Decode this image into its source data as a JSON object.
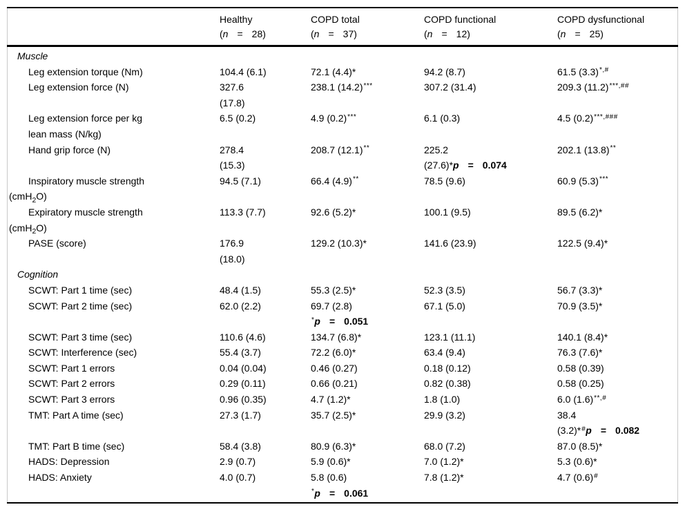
{
  "table": {
    "header": {
      "row_label_column": "",
      "columns": [
        {
          "title": "Healthy",
          "n_line": [
            "(",
            {
              "t": "n",
              "s": "i"
            },
            {
              "t": "=",
              "s": "g"
            },
            {
              "t": "28)",
              "s": "g"
            }
          ]
        },
        {
          "title": "COPD total",
          "n_line": [
            "(",
            {
              "t": "n",
              "s": "i"
            },
            {
              "t": "=",
              "s": "g"
            },
            {
              "t": "37)",
              "s": "g"
            }
          ]
        },
        {
          "title": "COPD functional",
          "n_line": [
            "(",
            {
              "t": "n",
              "s": "i"
            },
            {
              "t": "=",
              "s": "g"
            },
            {
              "t": "12)",
              "s": "g"
            }
          ]
        },
        {
          "title": "COPD dysfunctional",
          "n_line": [
            "(",
            {
              "t": "n",
              "s": "i"
            },
            {
              "t": "=",
              "s": "g"
            },
            {
              "t": "25)",
              "s": "g"
            }
          ]
        }
      ]
    },
    "rows": [
      {
        "kind": "section",
        "label": "Muscle"
      },
      {
        "kind": "data",
        "label": {
          "lines": [
            {
              "ind": "in",
              "seg": [
                "Leg extension torque (Nm)"
              ]
            }
          ]
        },
        "cells": [
          [
            [
              "104.4 (6.1)"
            ]
          ],
          [
            [
              "72.1 (4.4)*"
            ]
          ],
          [
            [
              "94.2 (8.7)"
            ]
          ],
          [
            [
              {
                "t": "61.5 (3.3)",
                "s": "n"
              },
              {
                "t": "*,#",
                "s": "sup"
              }
            ]
          ]
        ]
      },
      {
        "kind": "data",
        "label": {
          "lines": [
            {
              "ind": "in",
              "seg": [
                "Leg extension force (N)"
              ]
            }
          ]
        },
        "cells": [
          [
            [
              "327.6"
            ],
            [
              "(17.8)"
            ]
          ],
          [
            [
              {
                "t": "238.1 (14.2)",
                "s": "n"
              },
              {
                "t": "***",
                "s": "sup"
              }
            ]
          ],
          [
            [
              "307.2 (31.4)"
            ]
          ],
          [
            [
              {
                "t": "209.3 (11.2)",
                "s": "n"
              },
              {
                "t": "***,##",
                "s": "sup"
              }
            ]
          ]
        ]
      },
      {
        "kind": "data",
        "label": {
          "lines": [
            {
              "ind": "in",
              "seg": [
                "Leg extension force per kg"
              ]
            },
            {
              "ind": "in",
              "seg": [
                "lean mass (N/kg)"
              ]
            }
          ]
        },
        "cells": [
          [
            [
              "6.5 (0.2)"
            ]
          ],
          [
            [
              {
                "t": "4.9 (0.2)",
                "s": "n"
              },
              {
                "t": "***",
                "s": "sup"
              }
            ]
          ],
          [
            [
              "6.1 (0.3)"
            ]
          ],
          [
            [
              {
                "t": "4.5 (0.2)",
                "s": "n"
              },
              {
                "t": "***,###",
                "s": "sup"
              }
            ]
          ]
        ]
      },
      {
        "kind": "data",
        "label": {
          "lines": [
            {
              "ind": "in",
              "seg": [
                "Hand grip force (N)"
              ]
            }
          ]
        },
        "cells": [
          [
            [
              "278.4"
            ],
            [
              "(15.3)"
            ]
          ],
          [
            [
              {
                "t": "208.7 (12.1)",
                "s": "n"
              },
              {
                "t": "**",
                "s": "sup"
              }
            ]
          ],
          [
            [
              "225.2"
            ],
            [
              {
                "t": "(27.6)*",
                "s": "n"
              },
              {
                "t": "p",
                "s": "bi"
              },
              {
                "t": "=",
                "s": "bg"
              },
              {
                "t": "0.074",
                "s": "bg"
              }
            ]
          ],
          [
            [
              {
                "t": "202.1 (13.8)",
                "s": "n"
              },
              {
                "t": "**",
                "s": "sup"
              }
            ]
          ]
        ]
      },
      {
        "kind": "data",
        "label": {
          "lines": [
            {
              "ind": "in",
              "seg": [
                "Inspiratory muscle strength"
              ]
            },
            {
              "ind": "out",
              "seg": [
                "(cmH",
                {
                  "t": "2",
                  "s": "sub"
                },
                "O)"
              ]
            }
          ]
        },
        "cells": [
          [
            [
              "94.5 (7.1)"
            ]
          ],
          [
            [
              {
                "t": "66.4 (4.9)",
                "s": "n"
              },
              {
                "t": "**",
                "s": "sup"
              }
            ]
          ],
          [
            [
              "78.5 (9.6)"
            ]
          ],
          [
            [
              {
                "t": "60.9 (5.3)",
                "s": "n"
              },
              {
                "t": "***",
                "s": "sup"
              }
            ]
          ]
        ]
      },
      {
        "kind": "data",
        "label": {
          "lines": [
            {
              "ind": "in",
              "seg": [
                "Expiratory muscle strength"
              ]
            },
            {
              "ind": "out",
              "seg": [
                "(cmH",
                {
                  "t": "2",
                  "s": "sub"
                },
                "O)"
              ]
            }
          ]
        },
        "cells": [
          [
            [
              "113.3 (7.7)"
            ]
          ],
          [
            [
              "92.6 (5.2)*"
            ]
          ],
          [
            [
              "100.1 (9.5)"
            ]
          ],
          [
            [
              "89.5 (6.2)*"
            ]
          ]
        ]
      },
      {
        "kind": "data",
        "label": {
          "lines": [
            {
              "ind": "in",
              "seg": [
                "PASE (score)"
              ]
            }
          ]
        },
        "cells": [
          [
            [
              "176.9"
            ],
            [
              "(18.0)"
            ]
          ],
          [
            [
              "129.2 (10.3)*"
            ]
          ],
          [
            [
              "141.6 (23.9)"
            ]
          ],
          [
            [
              "122.5 (9.4)*"
            ]
          ]
        ]
      },
      {
        "kind": "section",
        "label": "Cognition"
      },
      {
        "kind": "data",
        "label": {
          "lines": [
            {
              "ind": "in",
              "seg": [
                "SCWT: Part 1 time (sec)"
              ]
            }
          ]
        },
        "cells": [
          [
            [
              "48.4 (1.5)"
            ]
          ],
          [
            [
              "55.3 (2.5)*"
            ]
          ],
          [
            [
              "52.3 (3.5)"
            ]
          ],
          [
            [
              "56.7 (3.3)*"
            ]
          ]
        ]
      },
      {
        "kind": "data",
        "label": {
          "lines": [
            {
              "ind": "in",
              "seg": [
                "SCWT: Part 2 time (sec)"
              ]
            }
          ]
        },
        "cells": [
          [
            [
              "62.0 (2.2)"
            ]
          ],
          [
            [
              "69.7 (2.8)"
            ],
            [
              {
                "t": "*",
                "s": "sup"
              },
              {
                "t": "p",
                "s": "bi"
              },
              {
                "t": "=",
                "s": "bg"
              },
              {
                "t": "0.051",
                "s": "bg"
              }
            ]
          ],
          [
            [
              "67.1 (5.0)"
            ]
          ],
          [
            [
              "70.9 (3.5)*"
            ]
          ]
        ]
      },
      {
        "kind": "data",
        "label": {
          "lines": [
            {
              "ind": "in",
              "seg": [
                "SCWT: Part 3 time (sec)"
              ]
            }
          ]
        },
        "cells": [
          [
            [
              "110.6 (4.6)"
            ]
          ],
          [
            [
              "134.7 (6.8)*"
            ]
          ],
          [
            [
              "123.1 (11.1)"
            ]
          ],
          [
            [
              "140.1 (8.4)*"
            ]
          ]
        ]
      },
      {
        "kind": "data",
        "label": {
          "lines": [
            {
              "ind": "in",
              "seg": [
                "SCWT: Interference (sec)"
              ]
            }
          ]
        },
        "cells": [
          [
            [
              "55.4 (3.7)"
            ]
          ],
          [
            [
              "72.2 (6.0)*"
            ]
          ],
          [
            [
              "63.4 (9.4)"
            ]
          ],
          [
            [
              "76.3 (7.6)*"
            ]
          ]
        ]
      },
      {
        "kind": "data",
        "label": {
          "lines": [
            {
              "ind": "in",
              "seg": [
                "SCWT: Part 1 errors"
              ]
            }
          ]
        },
        "cells": [
          [
            [
              "0.04 (0.04)"
            ]
          ],
          [
            [
              "0.46 (0.27)"
            ]
          ],
          [
            [
              "0.18 (0.12)"
            ]
          ],
          [
            [
              "0.58 (0.39)"
            ]
          ]
        ]
      },
      {
        "kind": "data",
        "label": {
          "lines": [
            {
              "ind": "in",
              "seg": [
                "SCWT: Part 2 errors"
              ]
            }
          ]
        },
        "cells": [
          [
            [
              "0.29 (0.11)"
            ]
          ],
          [
            [
              "0.66 (0.21)"
            ]
          ],
          [
            [
              "0.82 (0.38)"
            ]
          ],
          [
            [
              "0.58 (0.25)"
            ]
          ]
        ]
      },
      {
        "kind": "data",
        "label": {
          "lines": [
            {
              "ind": "in",
              "seg": [
                "SCWT: Part 3 errors"
              ]
            }
          ]
        },
        "cells": [
          [
            [
              "0.96 (0.35)"
            ]
          ],
          [
            [
              "4.7 (1.2)*"
            ]
          ],
          [
            [
              "1.8 (1.0)"
            ]
          ],
          [
            [
              {
                "t": "6.0 (1.6)",
                "s": "n"
              },
              {
                "t": "**,#",
                "s": "sup"
              }
            ]
          ]
        ]
      },
      {
        "kind": "data",
        "label": {
          "lines": [
            {
              "ind": "in",
              "seg": [
                "TMT: Part A time (sec)"
              ]
            }
          ]
        },
        "cells": [
          [
            [
              "27.3 (1.7)"
            ]
          ],
          [
            [
              "35.7 (2.5)*"
            ]
          ],
          [
            [
              "29.9 (3.2)"
            ]
          ],
          [
            [
              "38.4"
            ],
            [
              {
                "t": "(3.2)*",
                "s": "n"
              },
              {
                "t": "#",
                "s": "sup"
              },
              {
                "t": "p",
                "s": "bi"
              },
              {
                "t": "=",
                "s": "bg"
              },
              {
                "t": "0.082",
                "s": "bg"
              }
            ]
          ]
        ]
      },
      {
        "kind": "data",
        "label": {
          "lines": [
            {
              "ind": "in",
              "seg": [
                "TMT: Part B time (sec)"
              ]
            }
          ]
        },
        "cells": [
          [
            [
              "58.4 (3.8)"
            ]
          ],
          [
            [
              "80.9 (6.3)*"
            ]
          ],
          [
            [
              "68.0 (7.2)"
            ]
          ],
          [
            [
              "87.0 (8.5)*"
            ]
          ]
        ]
      },
      {
        "kind": "data",
        "label": {
          "lines": [
            {
              "ind": "in",
              "seg": [
                "HADS: Depression"
              ]
            }
          ]
        },
        "cells": [
          [
            [
              "2.9 (0.7)"
            ]
          ],
          [
            [
              "5.9 (0.6)*"
            ]
          ],
          [
            [
              "7.0 (1.2)*"
            ]
          ],
          [
            [
              "5.3 (0.6)*"
            ]
          ]
        ]
      },
      {
        "kind": "data",
        "label": {
          "lines": [
            {
              "ind": "in",
              "seg": [
                "HADS: Anxiety"
              ]
            }
          ]
        },
        "cells": [
          [
            [
              "4.0 (0.7)"
            ]
          ],
          [
            [
              "5.8 (0.6)"
            ],
            [
              {
                "t": "*",
                "s": "sup"
              },
              {
                "t": "p",
                "s": "bi"
              },
              {
                "t": "=",
                "s": "bg"
              },
              {
                "t": "0.061",
                "s": "bg"
              }
            ]
          ],
          [
            [
              "7.8 (1.2)*"
            ]
          ],
          [
            [
              {
                "t": "4.7 (0.6)",
                "s": "n"
              },
              {
                "t": "#",
                "s": "sup"
              }
            ]
          ]
        ]
      }
    ]
  }
}
